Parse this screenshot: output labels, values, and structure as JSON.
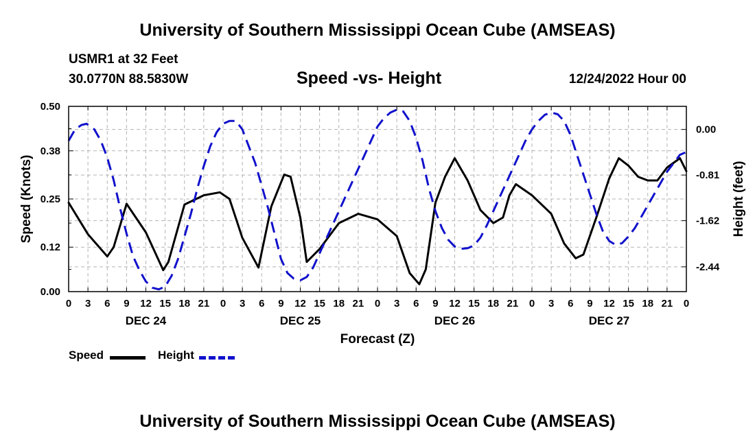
{
  "header": {
    "title": "University of Southern Mississippi Ocean Cube (AMSEAS)",
    "station": "USMR1 at 32 Feet",
    "coords": "30.0770N  88.5830W",
    "datetime": "12/24/2022 Hour 00"
  },
  "footer": {
    "title": "University of Southern Mississippi Ocean Cube (AMSEAS)"
  },
  "legend": {
    "speed_label": "Speed",
    "height_label": "Height"
  },
  "chart_data": {
    "type": "line",
    "title": "Speed -vs- Height",
    "xlabel": "Forecast (Z)",
    "ylabel": "Speed (Knots)",
    "y2label": "Height (feet)",
    "xlim": [
      0,
      96
    ],
    "ylim": [
      0,
      0.5
    ],
    "y2lim": [
      -2.88,
      0.41
    ],
    "x_tick_labels": [
      "0",
      "3",
      "6",
      "9",
      "12",
      "15",
      "18",
      "21",
      "0",
      "3",
      "6",
      "9",
      "12",
      "15",
      "18",
      "21",
      "0",
      "3",
      "6",
      "9",
      "12",
      "15",
      "18",
      "21",
      "0",
      "3",
      "6",
      "9",
      "12",
      "15",
      "18",
      "21",
      "0"
    ],
    "day_labels": [
      {
        "label": "DEC 24",
        "hour": 12
      },
      {
        "label": "DEC 25",
        "hour": 36
      },
      {
        "label": "DEC 26",
        "hour": 60
      },
      {
        "label": "DEC 27",
        "hour": 84
      }
    ],
    "y_ticks": [
      0.0,
      0.12,
      0.25,
      0.38,
      0.5
    ],
    "y_tick_labels": [
      "0.00",
      "0.12",
      "0.25",
      "0.38",
      "0.50"
    ],
    "y2_ticks": [
      0.0,
      -0.81,
      -1.62,
      -2.44
    ],
    "y2_tick_labels": [
      "0.00",
      "-0.81",
      "-1.62",
      "-2.44"
    ],
    "grid": true,
    "series": [
      {
        "name": "Speed",
        "axis": "left",
        "color": "#000000",
        "style": "solid",
        "x": [
          0,
          3,
          6,
          7,
          9,
          12,
          14.7,
          15.5,
          18,
          21,
          23.5,
          25,
          27,
          29.5,
          31.5,
          33.5,
          34.5,
          36,
          37,
          39,
          40.5,
          42,
          45,
          48,
          51,
          53,
          54.5,
          55.5,
          57,
          58.5,
          60,
          62,
          64,
          66,
          67.5,
          68.5,
          69.5,
          72,
          75,
          77,
          78.8,
          80,
          82,
          84,
          85.5,
          87,
          88.5,
          90,
          91.5,
          93,
          95,
          96
        ],
        "values": [
          0.24,
          0.155,
          0.095,
          0.12,
          0.237,
          0.16,
          0.058,
          0.08,
          0.235,
          0.26,
          0.268,
          0.25,
          0.145,
          0.065,
          0.23,
          0.316,
          0.31,
          0.2,
          0.08,
          0.115,
          0.15,
          0.185,
          0.21,
          0.195,
          0.15,
          0.05,
          0.02,
          0.06,
          0.24,
          0.31,
          0.36,
          0.3,
          0.22,
          0.185,
          0.2,
          0.26,
          0.29,
          0.26,
          0.21,
          0.13,
          0.09,
          0.1,
          0.2,
          0.305,
          0.36,
          0.34,
          0.31,
          0.3,
          0.3,
          0.335,
          0.36,
          0.325
        ]
      },
      {
        "name": "Height",
        "axis": "right",
        "color": "#1111cc",
        "style": "dashed",
        "x": [
          0,
          1,
          2,
          2.8,
          4,
          5,
          6,
          7,
          8,
          9,
          10,
          11,
          12,
          13,
          14,
          15,
          16,
          17,
          18,
          19,
          20,
          21,
          22,
          23,
          24,
          25,
          26,
          27,
          28,
          29,
          30,
          31,
          32,
          33,
          34,
          35,
          36,
          37,
          38,
          39,
          40,
          41,
          42,
          43,
          44,
          45,
          46,
          47,
          48,
          49,
          50,
          51,
          52,
          53,
          54,
          55,
          56,
          57,
          58,
          59,
          60,
          61,
          62,
          63,
          64,
          65,
          66,
          67,
          68,
          69,
          70,
          71,
          72,
          73,
          74,
          75,
          76,
          77,
          78,
          79,
          80,
          81,
          82,
          83,
          84,
          85,
          86,
          87,
          88,
          89,
          90,
          91,
          92,
          93,
          94,
          95,
          96
        ],
        "values": [
          -0.2,
          0.0,
          0.08,
          0.1,
          0.0,
          -0.2,
          -0.5,
          -0.9,
          -1.4,
          -1.85,
          -2.25,
          -2.5,
          -2.7,
          -2.81,
          -2.84,
          -2.79,
          -2.6,
          -2.3,
          -1.9,
          -1.5,
          -1.05,
          -0.65,
          -0.3,
          -0.05,
          0.1,
          0.15,
          0.15,
          0.0,
          -0.3,
          -0.6,
          -1.0,
          -1.4,
          -1.85,
          -2.3,
          -2.55,
          -2.65,
          -2.68,
          -2.62,
          -2.45,
          -2.2,
          -1.95,
          -1.7,
          -1.45,
          -1.2,
          -0.95,
          -0.7,
          -0.45,
          -0.2,
          0.05,
          0.2,
          0.3,
          0.35,
          0.32,
          0.15,
          -0.15,
          -0.55,
          -1.05,
          -1.45,
          -1.75,
          -1.96,
          -2.08,
          -2.12,
          -2.11,
          -2.06,
          -1.92,
          -1.7,
          -1.45,
          -1.2,
          -0.95,
          -0.7,
          -0.45,
          -0.2,
          0.0,
          0.15,
          0.26,
          0.3,
          0.27,
          0.15,
          -0.1,
          -0.45,
          -0.8,
          -1.15,
          -1.5,
          -1.8,
          -1.98,
          -2.05,
          -2.02,
          -1.9,
          -1.75,
          -1.55,
          -1.35,
          -1.15,
          -0.95,
          -0.75,
          -0.6,
          -0.45,
          -0.4
        ]
      }
    ]
  }
}
